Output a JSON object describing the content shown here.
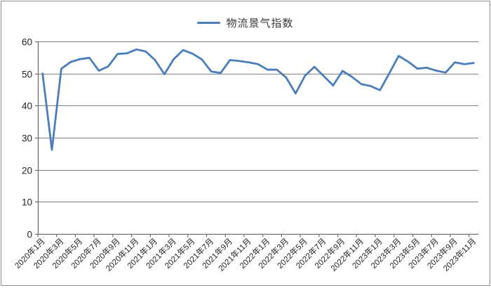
{
  "window": {
    "background": "#ffffff",
    "border_color": "#8f8f8f"
  },
  "chart_data": {
    "type": "line",
    "title": "",
    "legend_position": "top",
    "x": [
      "2020年1月",
      "2020年2月",
      "2020年3月",
      "2020年4月",
      "2020年5月",
      "2020年6月",
      "2020年7月",
      "2020年8月",
      "2020年9月",
      "2020年10月",
      "2020年11月",
      "2020年12月",
      "2021年1月",
      "2021年2月",
      "2021年3月",
      "2021年4月",
      "2021年5月",
      "2021年6月",
      "2021年7月",
      "2021年8月",
      "2021年9月",
      "2021年10月",
      "2021年11月",
      "2021年12月",
      "2022年1月",
      "2022年2月",
      "2022年3月",
      "2022年4月",
      "2022年5月",
      "2022年6月",
      "2022年7月",
      "2022年8月",
      "2022年9月",
      "2022年10月",
      "2022年11月",
      "2022年12月",
      "2023年1月",
      "2023年2月",
      "2023年3月",
      "2023年4月",
      "2023年5月",
      "2023年6月",
      "2023年7月",
      "2023年8月",
      "2023年9月",
      "2023年10月",
      "2023年11月"
    ],
    "x_tick_step": 2,
    "series": [
      {
        "name": "物流景气指数",
        "color": "#4A7EBB",
        "values": [
          50.0,
          26.2,
          51.5,
          53.6,
          54.5,
          54.9,
          50.9,
          52.2,
          56.1,
          56.3,
          57.5,
          56.9,
          54.2,
          49.8,
          54.5,
          57.3,
          56.2,
          54.4,
          50.6,
          50.2,
          54.2,
          53.9,
          53.5,
          52.9,
          51.2,
          51.2,
          48.7,
          43.8,
          49.3,
          52.1,
          49.2,
          46.3,
          50.8,
          49.0,
          46.7,
          46.1,
          44.8,
          50.1,
          55.5,
          53.7,
          51.5,
          51.8,
          50.9,
          50.3,
          53.5,
          52.9,
          53.3
        ]
      }
    ],
    "xlabel": "",
    "ylabel": "",
    "ylim": [
      0,
      60
    ],
    "y_ticks": [
      0,
      10,
      20,
      30,
      40,
      50,
      60
    ],
    "grid": "horizontal",
    "grid_color": "#808080",
    "axis_color": "#6e6e6e",
    "tick_label_color": "#262626",
    "x_label_font_px": 11.5,
    "y_label_font_px": 13.5
  }
}
